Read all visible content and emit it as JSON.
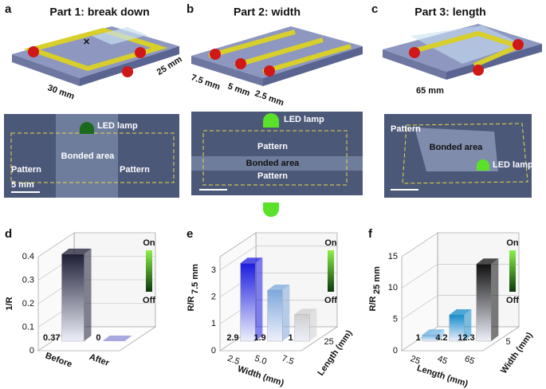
{
  "panels": [
    {
      "letter": "a",
      "title": "Part 1: break down",
      "dimensions": [
        "30 mm",
        "25 mm"
      ],
      "photo_labels": [
        "LED lamp",
        "Bonded area",
        "Pattern",
        "Pattern",
        "5 mm"
      ]
    },
    {
      "letter": "b",
      "title": "Part 2: width",
      "dimensions": [
        "7.5 mm",
        "5 mm",
        "2.5 mm"
      ],
      "photo_labels": [
        "LED lamp",
        "Pattern",
        "Bonded area",
        "Pattern"
      ]
    },
    {
      "letter": "c",
      "title": "Part 3: length",
      "dimensions": [
        "65 mm"
      ],
      "photo_labels": [
        "Pattern",
        "Bonded area",
        "LED lamp"
      ]
    }
  ],
  "chart_data": [
    {
      "type": "bar3d",
      "letter": "d",
      "ylabel": "1/R",
      "categories": [
        "Before",
        "After"
      ],
      "values": [
        0.37,
        0
      ],
      "colors": [
        "#1e1e36",
        "#8c8cd8"
      ],
      "ylim": [
        0,
        0.4
      ],
      "yticks": [
        0,
        0.1,
        0.2,
        0.3,
        0.4
      ],
      "grid": true,
      "colorbar": [
        "On",
        "Off"
      ]
    },
    {
      "type": "bar3d",
      "letter": "e",
      "ylabel": "R/R",
      "ylabel_sub": "7.5 mm",
      "xlabel": "Width (mm)",
      "depth_label": "Length (mm)",
      "depth_categories": [
        "25"
      ],
      "categories": [
        "2.5",
        "5.0",
        "7.5"
      ],
      "values": [
        2.9,
        1.9,
        1
      ],
      "colors": [
        "#1c1ce0",
        "#7fa8dc",
        "#cfcfcf"
      ],
      "ylim": [
        0,
        3.5
      ],
      "yticks": [
        0,
        1,
        2,
        3
      ],
      "grid": true,
      "colorbar": [
        "On",
        "Off"
      ]
    },
    {
      "type": "bar3d",
      "letter": "f",
      "ylabel": "R/R",
      "ylabel_sub": "25 mm",
      "xlabel": "Length (mm)",
      "depth_label": "Width (mm)",
      "depth_categories": [
        "5"
      ],
      "categories": [
        "25",
        "45",
        "65"
      ],
      "values": [
        1,
        4.2,
        12.3
      ],
      "colors": [
        "#6fb4e4",
        "#138ccc",
        "#111111"
      ],
      "ylim": [
        0,
        15
      ],
      "yticks": [
        0,
        5,
        10,
        15
      ],
      "grid": true,
      "colorbar": [
        "On",
        "Off"
      ]
    }
  ]
}
